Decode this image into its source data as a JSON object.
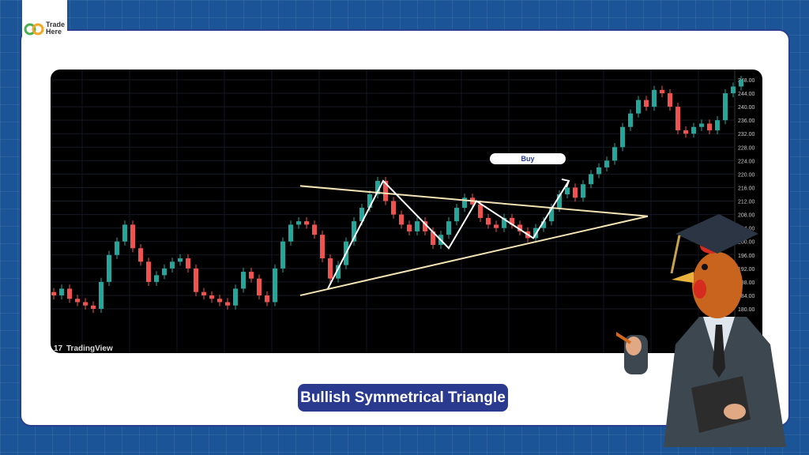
{
  "brand": {
    "logo_text_line1": "Trade",
    "logo_text_line2": "Here",
    "colors": {
      "green": "#4caf50",
      "orange": "#f5a623"
    }
  },
  "title": "Bullish Symmetrical Triangle",
  "chart_data": {
    "type": "candlestick",
    "watermark": "TradingView",
    "annotation": "Buy",
    "ylim": [
      176,
      250
    ],
    "y_ticks": [
      "248.00",
      "244.00",
      "240.00",
      "236.00",
      "232.00",
      "228.00",
      "224.00",
      "220.00",
      "216.00",
      "212.00",
      "208.00",
      "204.00",
      "200.00",
      "196.00",
      "192.00",
      "188.00",
      "184.00",
      "180.00"
    ],
    "grid": true,
    "colors": {
      "up": "#26a69a",
      "down": "#ef5350",
      "background": "#000000",
      "triangle": "#f3e3b5",
      "zigzag": "#ffffff"
    },
    "first_open": 185,
    "closes": [
      184,
      186,
      183,
      182,
      181,
      180,
      188,
      196,
      200,
      205,
      198,
      194,
      188,
      190,
      192,
      194,
      195,
      192,
      185,
      184,
      183,
      182,
      181,
      186,
      191,
      189,
      184,
      182,
      192,
      200,
      205,
      206,
      205,
      202,
      195,
      189,
      193,
      200,
      206,
      210,
      214,
      218,
      212,
      208,
      205,
      203,
      206,
      203,
      199,
      202,
      206,
      210,
      213,
      211,
      207,
      205,
      204,
      207,
      205,
      203,
      201,
      204,
      206,
      210,
      214,
      216,
      213,
      217,
      220,
      222,
      224,
      228,
      234,
      238,
      242,
      240,
      245,
      244,
      240,
      233,
      232,
      234,
      235,
      233,
      236,
      244,
      246,
      248
    ],
    "triangle": {
      "upper": [
        [
          380,
          216.5
        ],
        [
          820,
          207.5
        ]
      ],
      "lower": [
        [
          380,
          184
        ],
        [
          820,
          207.5
        ]
      ]
    },
    "zigzag_prices": [
      186,
      218,
      198,
      212,
      201,
      218
    ]
  }
}
